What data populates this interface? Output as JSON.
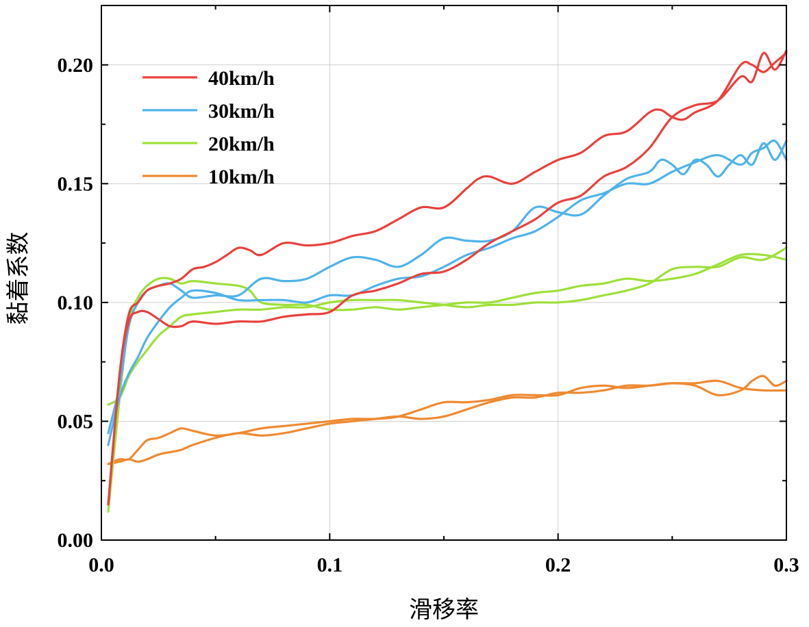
{
  "chart_data": {
    "type": "line",
    "xlabel": "滑移率",
    "ylabel": "黏着系数",
    "xlim": [
      0.0,
      0.3
    ],
    "ylim": [
      0.0,
      0.225
    ],
    "xticks": [
      0.0,
      0.1,
      0.2,
      0.3
    ],
    "xtick_labels": [
      "0.0",
      "0.1",
      "0.2",
      "0.3"
    ],
    "yticks": [
      0.0,
      0.05,
      0.1,
      0.15,
      0.2
    ],
    "ytick_labels": [
      "0.00",
      "0.05",
      "0.10",
      "0.15",
      "0.20"
    ],
    "grid": true,
    "legend_position": "top-left",
    "series": [
      {
        "name": "40km/h",
        "color": "#e8413e",
        "curves": [
          {
            "x": [
              0.003,
              0.008,
              0.012,
              0.016,
              0.02,
              0.025,
              0.03,
              0.035,
              0.04,
              0.045,
              0.05,
              0.055,
              0.06,
              0.065,
              0.07,
              0.08,
              0.09,
              0.1,
              0.11,
              0.12,
              0.13,
              0.14,
              0.15,
              0.16,
              0.165,
              0.17,
              0.18,
              0.19,
              0.2,
              0.21,
              0.22,
              0.23,
              0.24,
              0.245,
              0.25,
              0.255,
              0.26,
              0.27,
              0.28,
              0.285,
              0.29,
              0.295,
              0.3
            ],
            "y": [
              0.015,
              0.07,
              0.095,
              0.1,
              0.105,
              0.107,
              0.108,
              0.11,
              0.114,
              0.115,
              0.117,
              0.12,
              0.123,
              0.122,
              0.12,
              0.125,
              0.124,
              0.125,
              0.128,
              0.13,
              0.135,
              0.14,
              0.14,
              0.148,
              0.152,
              0.153,
              0.15,
              0.155,
              0.16,
              0.163,
              0.17,
              0.172,
              0.18,
              0.181,
              0.178,
              0.177,
              0.18,
              0.185,
              0.2,
              0.2,
              0.197,
              0.201,
              0.205
            ]
          },
          {
            "x": [
              0.003,
              0.008,
              0.012,
              0.016,
              0.02,
              0.025,
              0.03,
              0.035,
              0.04,
              0.05,
              0.06,
              0.07,
              0.08,
              0.09,
              0.1,
              0.11,
              0.12,
              0.13,
              0.14,
              0.15,
              0.16,
              0.17,
              0.18,
              0.19,
              0.2,
              0.21,
              0.22,
              0.23,
              0.24,
              0.25,
              0.26,
              0.27,
              0.28,
              0.285,
              0.29,
              0.295,
              0.3
            ],
            "y": [
              0.015,
              0.07,
              0.092,
              0.096,
              0.096,
              0.093,
              0.09,
              0.09,
              0.092,
              0.091,
              0.092,
              0.092,
              0.094,
              0.095,
              0.096,
              0.103,
              0.105,
              0.108,
              0.112,
              0.113,
              0.118,
              0.125,
              0.13,
              0.135,
              0.142,
              0.145,
              0.153,
              0.157,
              0.165,
              0.178,
              0.183,
              0.185,
              0.195,
              0.193,
              0.205,
              0.198,
              0.206
            ]
          }
        ]
      },
      {
        "name": "30km/h",
        "color": "#4fb3ea",
        "curves": [
          {
            "x": [
              0.003,
              0.008,
              0.012,
              0.016,
              0.02,
              0.025,
              0.03,
              0.035,
              0.04,
              0.05,
              0.06,
              0.07,
              0.08,
              0.09,
              0.1,
              0.11,
              0.12,
              0.13,
              0.14,
              0.15,
              0.16,
              0.17,
              0.18,
              0.19,
              0.2,
              0.21,
              0.22,
              0.23,
              0.24,
              0.245,
              0.25,
              0.255,
              0.26,
              0.265,
              0.27,
              0.275,
              0.28,
              0.285,
              0.29,
              0.295,
              0.3
            ],
            "y": [
              0.045,
              0.065,
              0.09,
              0.1,
              0.105,
              0.107,
              0.108,
              0.105,
              0.102,
              0.103,
              0.103,
              0.11,
              0.109,
              0.11,
              0.115,
              0.119,
              0.118,
              0.115,
              0.12,
              0.127,
              0.126,
              0.126,
              0.13,
              0.14,
              0.138,
              0.137,
              0.145,
              0.152,
              0.155,
              0.16,
              0.158,
              0.154,
              0.16,
              0.158,
              0.153,
              0.158,
              0.162,
              0.158,
              0.167,
              0.16,
              0.168
            ]
          },
          {
            "x": [
              0.003,
              0.008,
              0.012,
              0.016,
              0.02,
              0.025,
              0.03,
              0.035,
              0.04,
              0.05,
              0.06,
              0.07,
              0.08,
              0.09,
              0.1,
              0.11,
              0.12,
              0.13,
              0.14,
              0.15,
              0.16,
              0.17,
              0.18,
              0.19,
              0.2,
              0.21,
              0.22,
              0.23,
              0.24,
              0.25,
              0.26,
              0.27,
              0.28,
              0.285,
              0.29,
              0.295,
              0.3
            ],
            "y": [
              0.04,
              0.06,
              0.07,
              0.077,
              0.085,
              0.092,
              0.098,
              0.102,
              0.105,
              0.104,
              0.101,
              0.101,
              0.101,
              0.1,
              0.103,
              0.103,
              0.107,
              0.11,
              0.111,
              0.115,
              0.12,
              0.123,
              0.127,
              0.13,
              0.136,
              0.143,
              0.146,
              0.15,
              0.15,
              0.155,
              0.159,
              0.162,
              0.158,
              0.163,
              0.165,
              0.168,
              0.16
            ]
          }
        ]
      },
      {
        "name": "20km/h",
        "color": "#9ee03a",
        "curves": [
          {
            "x": [
              0.003,
              0.008,
              0.012,
              0.016,
              0.02,
              0.025,
              0.03,
              0.035,
              0.04,
              0.05,
              0.06,
              0.065,
              0.07,
              0.08,
              0.09,
              0.1,
              0.11,
              0.12,
              0.13,
              0.14,
              0.15,
              0.16,
              0.17,
              0.18,
              0.19,
              0.2,
              0.21,
              0.22,
              0.23,
              0.24,
              0.25,
              0.26,
              0.27,
              0.28,
              0.29,
              0.3
            ],
            "y": [
              0.012,
              0.06,
              0.092,
              0.102,
              0.107,
              0.11,
              0.11,
              0.108,
              0.109,
              0.108,
              0.107,
              0.105,
              0.1,
              0.099,
              0.099,
              0.097,
              0.097,
              0.098,
              0.097,
              0.098,
              0.099,
              0.1,
              0.1,
              0.102,
              0.104,
              0.105,
              0.107,
              0.108,
              0.11,
              0.109,
              0.11,
              0.112,
              0.116,
              0.12,
              0.12,
              0.118
            ]
          },
          {
            "x": [
              0.003,
              0.008,
              0.012,
              0.016,
              0.02,
              0.025,
              0.03,
              0.035,
              0.04,
              0.05,
              0.06,
              0.07,
              0.08,
              0.09,
              0.1,
              0.11,
              0.12,
              0.13,
              0.14,
              0.15,
              0.16,
              0.17,
              0.18,
              0.19,
              0.2,
              0.21,
              0.22,
              0.23,
              0.24,
              0.25,
              0.26,
              0.27,
              0.28,
              0.29,
              0.3
            ],
            "y": [
              0.057,
              0.06,
              0.069,
              0.075,
              0.08,
              0.086,
              0.09,
              0.094,
              0.095,
              0.096,
              0.097,
              0.097,
              0.098,
              0.098,
              0.1,
              0.101,
              0.101,
              0.101,
              0.1,
              0.099,
              0.098,
              0.099,
              0.099,
              0.1,
              0.1,
              0.101,
              0.103,
              0.105,
              0.108,
              0.114,
              0.115,
              0.115,
              0.119,
              0.118,
              0.123
            ]
          }
        ]
      },
      {
        "name": "10km/h",
        "color": "#ee8a32",
        "curves": [
          {
            "x": [
              0.003,
              0.008,
              0.012,
              0.016,
              0.02,
              0.025,
              0.03,
              0.035,
              0.04,
              0.05,
              0.06,
              0.07,
              0.08,
              0.09,
              0.1,
              0.11,
              0.12,
              0.13,
              0.14,
              0.15,
              0.16,
              0.17,
              0.18,
              0.19,
              0.2,
              0.21,
              0.22,
              0.23,
              0.24,
              0.25,
              0.26,
              0.27,
              0.28,
              0.285,
              0.29,
              0.295,
              0.3
            ],
            "y": [
              0.032,
              0.034,
              0.034,
              0.038,
              0.042,
              0.043,
              0.045,
              0.047,
              0.046,
              0.044,
              0.045,
              0.047,
              0.048,
              0.049,
              0.05,
              0.051,
              0.051,
              0.052,
              0.055,
              0.058,
              0.058,
              0.059,
              0.061,
              0.061,
              0.061,
              0.064,
              0.065,
              0.064,
              0.065,
              0.066,
              0.065,
              0.061,
              0.063,
              0.067,
              0.069,
              0.065,
              0.067
            ]
          },
          {
            "x": [
              0.003,
              0.008,
              0.012,
              0.016,
              0.02,
              0.025,
              0.03,
              0.035,
              0.04,
              0.05,
              0.06,
              0.07,
              0.08,
              0.09,
              0.1,
              0.11,
              0.12,
              0.13,
              0.14,
              0.15,
              0.16,
              0.17,
              0.18,
              0.19,
              0.2,
              0.21,
              0.22,
              0.23,
              0.24,
              0.25,
              0.26,
              0.27,
              0.28,
              0.29,
              0.3
            ],
            "y": [
              0.032,
              0.033,
              0.034,
              0.033,
              0.034,
              0.036,
              0.037,
              0.038,
              0.04,
              0.043,
              0.045,
              0.044,
              0.045,
              0.047,
              0.049,
              0.05,
              0.051,
              0.052,
              0.051,
              0.052,
              0.055,
              0.058,
              0.06,
              0.06,
              0.062,
              0.062,
              0.063,
              0.065,
              0.065,
              0.066,
              0.066,
              0.067,
              0.064,
              0.063,
              0.063
            ]
          }
        ]
      }
    ]
  }
}
